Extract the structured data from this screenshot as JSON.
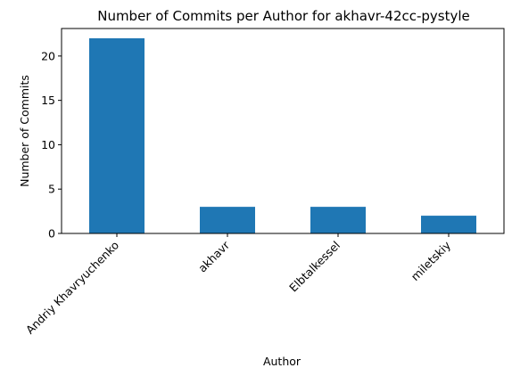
{
  "chart_data": {
    "type": "bar",
    "title": "Number of Commits per Author for akhavr-42cc-pystyle",
    "xlabel": "Author",
    "ylabel": "Number of Commits",
    "categories": [
      "Andriy Khavryuchenko",
      "akhavr",
      "Elbtalkessel",
      "miletskiy"
    ],
    "values": [
      22,
      3,
      3,
      2
    ],
    "ylim": [
      0,
      23.1
    ],
    "yticks": [
      0,
      5,
      10,
      15,
      20
    ],
    "grid": false,
    "legend": "none",
    "bar_color": "#1f77b4"
  }
}
